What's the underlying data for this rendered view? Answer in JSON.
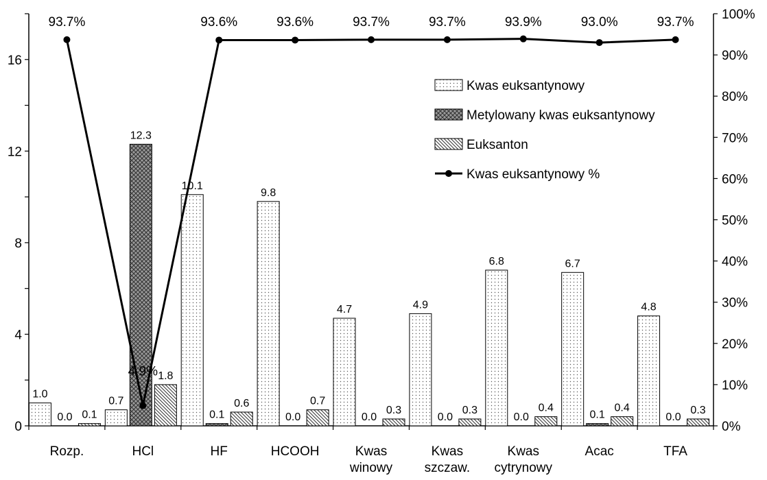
{
  "chart_data": {
    "type": "bar",
    "categories": [
      "Rozp.",
      "HCl",
      "HF",
      "HCOOH",
      "Kwas winowy",
      "Kwas szczaw.",
      "Kwas cytrynowy",
      "Acac",
      "TFA"
    ],
    "category_lines": [
      [
        "Rozp."
      ],
      [
        "HCl"
      ],
      [
        "HF"
      ],
      [
        "HCOOH"
      ],
      [
        "Kwas",
        "winowy"
      ],
      [
        "Kwas",
        "szczaw."
      ],
      [
        "Kwas",
        "cytrynowy"
      ],
      [
        "Acac"
      ],
      [
        "TFA"
      ]
    ],
    "series": [
      {
        "name": "Kwas euksantynowy",
        "values": [
          1.0,
          0.7,
          10.1,
          9.8,
          4.7,
          4.9,
          6.8,
          6.7,
          4.8
        ],
        "labels": [
          "1.0",
          "0.7",
          "10.1",
          "9.8",
          "4.7",
          "4.9",
          "6.8",
          "6.7",
          "4.8"
        ],
        "pattern": "dots"
      },
      {
        "name": "Metylowany kwas euksantynowy",
        "values": [
          0.0,
          12.3,
          0.1,
          0.0,
          0.0,
          0.0,
          0.0,
          0.1,
          0.0
        ],
        "labels": [
          "0.0",
          "12.3",
          "0.1",
          "0.0",
          "0.0",
          "0.0",
          "0.0",
          "0.1",
          "0.0"
        ],
        "pattern": "crosshatch"
      },
      {
        "name": "Euksanton",
        "values": [
          0.1,
          1.8,
          0.6,
          0.7,
          0.3,
          0.3,
          0.4,
          0.4,
          0.3
        ],
        "labels": [
          "0.1",
          "1.8",
          "0.6",
          "0.7",
          "0.3",
          "0.3",
          "0.4",
          "0.4",
          "0.3"
        ],
        "pattern": "diagonal"
      }
    ],
    "line_series": {
      "name": "Kwas euksantynowy %",
      "values": [
        93.7,
        4.9,
        93.6,
        93.6,
        93.7,
        93.7,
        93.9,
        93.0,
        93.7
      ],
      "labels": [
        "93.7%",
        "4.9%",
        "93.6%",
        "93.6%",
        "93.7%",
        "93.7%",
        "93.9%",
        "93.0%",
        "93.7%"
      ]
    },
    "y_left": {
      "min": 0,
      "max": 18,
      "ticks": [
        0,
        4,
        8,
        12,
        16
      ]
    },
    "y_right": {
      "min": 0,
      "max": 100,
      "ticks": [
        "0%",
        "10%",
        "20%",
        "30%",
        "40%",
        "50%",
        "60%",
        "70%",
        "80%",
        "90%",
        "100%"
      ]
    },
    "legend": {
      "position": "top-right"
    },
    "grid": false
  }
}
